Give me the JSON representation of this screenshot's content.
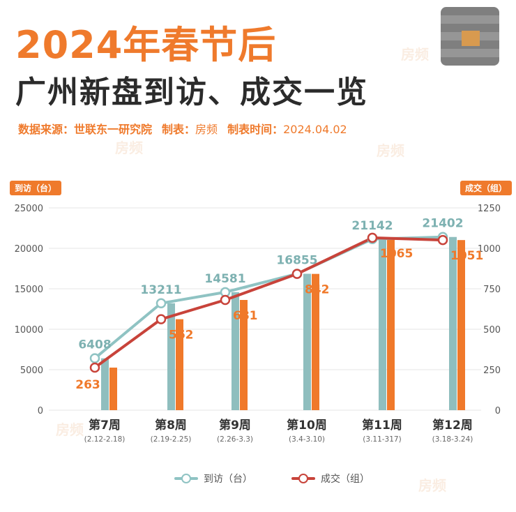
{
  "header": {
    "title_line1": "2024年春节后",
    "title_line2": "广州新盘到访、成交一览",
    "source_label": "数据来源：",
    "source_value": "世联东一研究院",
    "maker_label": "制表：",
    "maker_value": "房频",
    "time_label": "制表时间：",
    "time_value": "2024.04.02"
  },
  "watermark": "房频",
  "colors": {
    "accent": "#ef7a2c",
    "visits_line": "#8fc3c3",
    "visits_bar": "#8fbebe",
    "deals_line": "#c8433a",
    "deals_bar": "#f0792a"
  },
  "chart_data": {
    "type": "bar",
    "categories": [
      "第7周",
      "第8周",
      "第9周",
      "第10周",
      "第11周",
      "第12周"
    ],
    "category_subs": [
      "(2.12-2.18)",
      "(2.19-2.25)",
      "(2.26-3.3)",
      "(3.4-3.10)",
      "(3.11-317)",
      "(3.18-3.24)"
    ],
    "left_axis_label": "到访（台）",
    "right_axis_label": "成交（组）",
    "left_ticks": [
      "0",
      "5000",
      "10000",
      "15000",
      "20000",
      "25000"
    ],
    "right_ticks": [
      "0",
      "250",
      "500",
      "750",
      "1000",
      "1250"
    ],
    "ylim_left": [
      0,
      25000
    ],
    "ylim_right": [
      0,
      1250
    ],
    "series": [
      {
        "name": "到访（台）",
        "axis": "left",
        "style": "bar+line",
        "values": [
          6408,
          13211,
          14581,
          16855,
          21142,
          21402
        ]
      },
      {
        "name": "成交（组）",
        "axis": "right",
        "style": "bar+line",
        "values": [
          263,
          562,
          681,
          842,
          1065,
          1051
        ]
      }
    ],
    "grid": true,
    "legend_position": "bottom"
  }
}
